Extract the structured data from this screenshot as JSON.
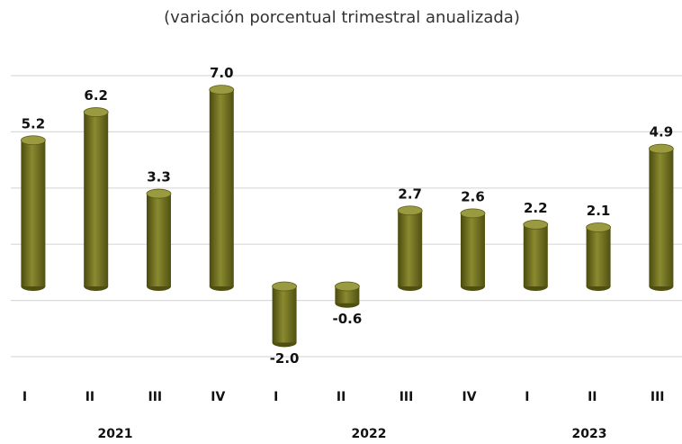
{
  "chart_data": {
    "type": "bar",
    "subtitle": "(variación porcentual trimestral anualizada)",
    "categories": [
      "I",
      "II",
      "III",
      "IV",
      "I",
      "II",
      "III",
      "IV",
      "I",
      "II",
      "III"
    ],
    "group_labels": [
      "2021",
      "2022",
      "2023"
    ],
    "values": [
      5.2,
      6.2,
      3.3,
      7.0,
      -2.0,
      -0.6,
      2.7,
      2.6,
      2.2,
      2.1,
      4.9
    ],
    "value_labels": [
      "5.2",
      "6.2",
      "3.3",
      "7.0",
      "-2.0",
      "-0.6",
      "2.7",
      "2.6",
      "2.2",
      "2.1",
      "4.9"
    ],
    "color": "#6b6b1c",
    "ylim": [
      -3,
      8
    ],
    "yticks": [
      -2.5,
      -0.5,
      1.5,
      3.5,
      5.5,
      7.5
    ],
    "grid": true
  }
}
